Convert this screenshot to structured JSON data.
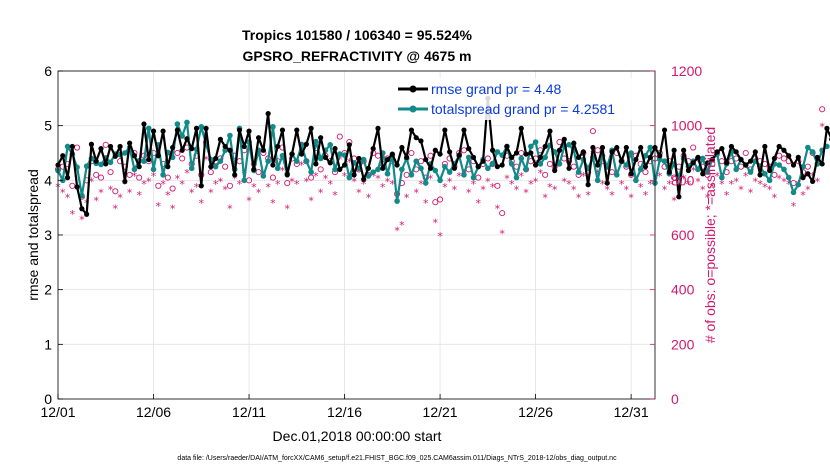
{
  "chart_data": {
    "type": "line",
    "title_line1": "Tropics 101580 / 106340 = 95.524%",
    "title_line2": "GPSRO_REFRACTIVITY @ 4675 m",
    "xlabel": "Dec.01,2018 00:00:00 start",
    "ylabel_left": "rmse and totalspread",
    "ylabel_right": "# of obs: o=possible; *=assimilated",
    "x_tick_labels": [
      "12/01",
      "12/06",
      "12/11",
      "12/16",
      "12/21",
      "12/26",
      "12/31"
    ],
    "x_tick_values": [
      1,
      6,
      11,
      16,
      21,
      26,
      31
    ],
    "xlim": [
      1,
      32.25
    ],
    "ylim_left": [
      0,
      6
    ],
    "y_ticks_left": [
      "0",
      "1",
      "2",
      "3",
      "4",
      "5",
      "6"
    ],
    "ylim_right": [
      0,
      1200
    ],
    "y_ticks_right": [
      "0",
      "200",
      "400",
      "600",
      "800",
      "1000",
      "1200"
    ],
    "x_start": 1,
    "x_step": 0.25,
    "series": [
      {
        "name": "rmse",
        "legend": "rmse grand pr = 4.48",
        "color": "#000000",
        "values": [
          4.28,
          4.45,
          4.05,
          4.62,
          3.88,
          3.48,
          3.38,
          4.66,
          4.35,
          4.58,
          4.3,
          4.62,
          4.44,
          4.62,
          3.98,
          4.68,
          4.45,
          4.25,
          5.03,
          4.38,
          4.9,
          4.45,
          4.9,
          4.25,
          4.6,
          4.92,
          4.55,
          4.76,
          4.58,
          4.95,
          3.9,
          4.95,
          4.25,
          4.4,
          4.75,
          4.62,
          4.55,
          4.1,
          4.92,
          4.62,
          4.9,
          4.2,
          4.78,
          4.55,
          5.22,
          4.28,
          4.62,
          4.92,
          4.1,
          4.48,
          4.92,
          4.48,
          4.66,
          4.95,
          4.3,
          4.78,
          4.42,
          4.32,
          4.58,
          4.2,
          4.28,
          4.65,
          4.1,
          4.4,
          4.02,
          4.22,
          4.58,
          4.95,
          4.22,
          4.38,
          4.48,
          4.28,
          4.6,
          4.42,
          4.92,
          4.78,
          4.72,
          4.38,
          4.22,
          4.55,
          4.48,
          4.92,
          4.52,
          4.22,
          4.46,
          4.92,
          4.58,
          4.42,
          4.25,
          4.35,
          5.5,
          4.55,
          4.25,
          4.28,
          4.62,
          4.42,
          4.5,
          4.95,
          4.48,
          4.5,
          4.28,
          4.42,
          4.62,
          4.9,
          4.18,
          4.55,
          4.75,
          4.22,
          4.68,
          4.42,
          4.52,
          3.92,
          4.6,
          4.28,
          4.6,
          3.95,
          4.52,
          4.6,
          4.35,
          4.6,
          4.12,
          4.38,
          4.6,
          4.25,
          4.42,
          4.6,
          4.45,
          4.92,
          4.15,
          4.55,
          3.7,
          4.55,
          4.18,
          4.32,
          4.42,
          4.12,
          4.32,
          4.38,
          4.52,
          4.58,
          4.32,
          4.62,
          4.52,
          4.38,
          4.28,
          4.35,
          4.52,
          4.1,
          4.62,
          4.18,
          4.4,
          4.62,
          4.55,
          4.45,
          4.28,
          4.42,
          4.05,
          4.12,
          3.98,
          4.42,
          4.3,
          4.95,
          4.75,
          5.32
        ]
      },
      {
        "name": "totalspread",
        "legend": "totalspread grand pr = 4.2581",
        "color": "#138a8a",
        "values": [
          4.18,
          4.0,
          4.62,
          4.48,
          4.24,
          3.72,
          4.26,
          4.4,
          4.31,
          4.29,
          4.41,
          4.33,
          4.48,
          4.47,
          4.5,
          4.6,
          4.2,
          4.36,
          4.35,
          4.95,
          4.2,
          4.65,
          4.1,
          4.51,
          4.42,
          5.03,
          4.81,
          5.06,
          4.22,
          4.57,
          4.98,
          4.66,
          4.38,
          4.25,
          4.35,
          4.55,
          4.82,
          4.2,
          4.95,
          4.0,
          4.7,
          4.18,
          4.55,
          4.08,
          4.35,
          4.98,
          4.22,
          4.45,
          4.12,
          4.48,
          4.35,
          4.65,
          4.35,
          4.15,
          4.71,
          4.4,
          4.55,
          4.65,
          4.2,
          4.48,
          4.46,
          4.05,
          4.32,
          4.22,
          4.38,
          4.08,
          4.15,
          4.2,
          4.5,
          4.12,
          4.46,
          3.62,
          4.2,
          4.4,
          4.1,
          4.35,
          4.22,
          3.95,
          4.3,
          4.18,
          4.0,
          4.25,
          4.15,
          4.3,
          4.45,
          4.1,
          4.42,
          4.05,
          4.25,
          4.38,
          4.22,
          4.3,
          4.52,
          4.46,
          4.62,
          4.3,
          4.05,
          4.4,
          4.2,
          4.62,
          4.7,
          4.3,
          4.42,
          4.64,
          4.52,
          4.3,
          4.62,
          4.65,
          4.55,
          4.15,
          4.38,
          4.22,
          4.42,
          4.0,
          4.45,
          4.25,
          4.55,
          4.1,
          4.35,
          4.28,
          4.5,
          4.0,
          4.2,
          4.45,
          4.6,
          3.95,
          4.38,
          4.35,
          4.12,
          4.3,
          4.05,
          4.4,
          4.25,
          4.35,
          4.2,
          4.4,
          4.15,
          4.38,
          4.48,
          4.05,
          4.3,
          4.52,
          4.2,
          4.38,
          4.28,
          4.15,
          4.35,
          4.25,
          4.12,
          4.0,
          4.3,
          4.28,
          4.2,
          4.05,
          3.78,
          3.92,
          4.25,
          4.6,
          4.52,
          4.3,
          4.55,
          4.62
        ]
      },
      {
        "name": "possible",
        "axis": "right",
        "marker": "o",
        "color": "#d1186f",
        "values": [
          840,
          850,
          860,
          780,
          920,
          740,
          800,
          870,
          820,
          810,
          930,
          830,
          760,
          870,
          850,
          820,
          900,
          810,
          890,
          870,
          900,
          780,
          860,
          810,
          770,
          900,
          880,
          920,
          860,
          890,
          820,
          940,
          830,
          870,
          880,
          850,
          780,
          890,
          870,
          910,
          800,
          860,
          830,
          900,
          880,
          810,
          870,
          920,
          790,
          880,
          860,
          930,
          870,
          810,
          900,
          840,
          890,
          870,
          830,
          960,
          900,
          940,
          880,
          840,
          870,
          820,
          900,
          890,
          860,
          880,
          870,
          750,
          790,
          820,
          900,
          840,
          870,
          810,
          890,
          720,
          730,
          860,
          880,
          850,
          900,
          910,
          840,
          870,
          810,
          860,
          880,
          860,
          780,
          680,
          890,
          870,
          850,
          900,
          840,
          870,
          880,
          910,
          820,
          860,
          850,
          940,
          880,
          870,
          850,
          820,
          900,
          830,
          980,
          910,
          870,
          850,
          830,
          900,
          870,
          850,
          820,
          890,
          860,
          830,
          870,
          880,
          900,
          850,
          870,
          810,
          850,
          890,
          870,
          920,
          880,
          850,
          820,
          860,
          900,
          870,
          830,
          870,
          880,
          850,
          900,
          840,
          880,
          870,
          860,
          850,
          820,
          890,
          880,
          870,
          790,
          870,
          830,
          850,
          900,
          880,
          1060
        ]
      },
      {
        "name": "assimilated",
        "axis": "right",
        "marker": "*",
        "color": "#d1186f",
        "values": [
          780,
          760,
          740,
          680,
          770,
          660,
          720,
          800,
          730,
          760,
          870,
          770,
          700,
          740,
          790,
          760,
          820,
          750,
          790,
          800,
          820,
          710,
          790,
          750,
          700,
          810,
          790,
          830,
          760,
          780,
          720,
          880,
          760,
          790,
          800,
          770,
          700,
          810,
          790,
          830,
          730,
          780,
          760,
          820,
          780,
          720,
          790,
          840,
          700,
          800,
          790,
          860,
          800,
          730,
          820,
          760,
          810,
          790,
          750,
          880,
          820,
          870,
          800,
          760,
          790,
          740,
          820,
          810,
          780,
          800,
          790,
          620,
          640,
          740,
          820,
          760,
          790,
          720,
          810,
          650,
          600,
          780,
          800,
          770,
          820,
          830,
          760,
          790,
          720,
          770,
          800,
          780,
          700,
          610,
          810,
          790,
          770,
          820,
          760,
          790,
          800,
          830,
          740,
          780,
          770,
          860,
          800,
          790,
          770,
          740,
          820,
          750,
          900,
          830,
          790,
          770,
          750,
          820,
          790,
          770,
          740,
          810,
          780,
          750,
          790,
          800,
          820,
          770,
          790,
          730,
          770,
          810,
          790,
          840,
          800,
          770,
          740,
          780,
          820,
          790,
          750,
          790,
          800,
          770,
          820,
          760,
          800,
          790,
          780,
          770,
          740,
          810,
          800,
          790,
          710,
          790,
          750,
          770,
          820,
          800,
          1000
        ]
      }
    ],
    "footnote": "data file: /Users/raeder/DAI/ATM_forcXX/CAM6_setup/f.e21.FHIST_BGC.f09_025.CAM6assim.011/Diags_NTrS_2018-12/obs_diag_output.nc"
  }
}
